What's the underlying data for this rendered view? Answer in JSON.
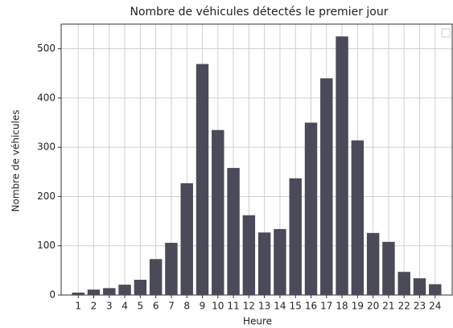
{
  "chart_data": {
    "type": "bar",
    "title": "Nombre de véhicules détectés le premier jour",
    "xlabel": "Heure",
    "ylabel": "Nombre de véhicules",
    "categories": [
      "1",
      "2",
      "3",
      "4",
      "5",
      "6",
      "7",
      "8",
      "9",
      "10",
      "11",
      "12",
      "13",
      "14",
      "15",
      "16",
      "17",
      "18",
      "19",
      "20",
      "21",
      "22",
      "23",
      "24"
    ],
    "values": [
      5,
      11,
      14,
      21,
      31,
      73,
      106,
      227,
      469,
      335,
      258,
      162,
      127,
      134,
      237,
      350,
      440,
      525,
      314,
      126,
      108,
      47,
      34,
      22
    ],
    "color": "#4a4a58",
    "ylim": [
      0,
      550
    ],
    "yticks": [
      0,
      100,
      200,
      300,
      400,
      500
    ],
    "grid": true
  }
}
